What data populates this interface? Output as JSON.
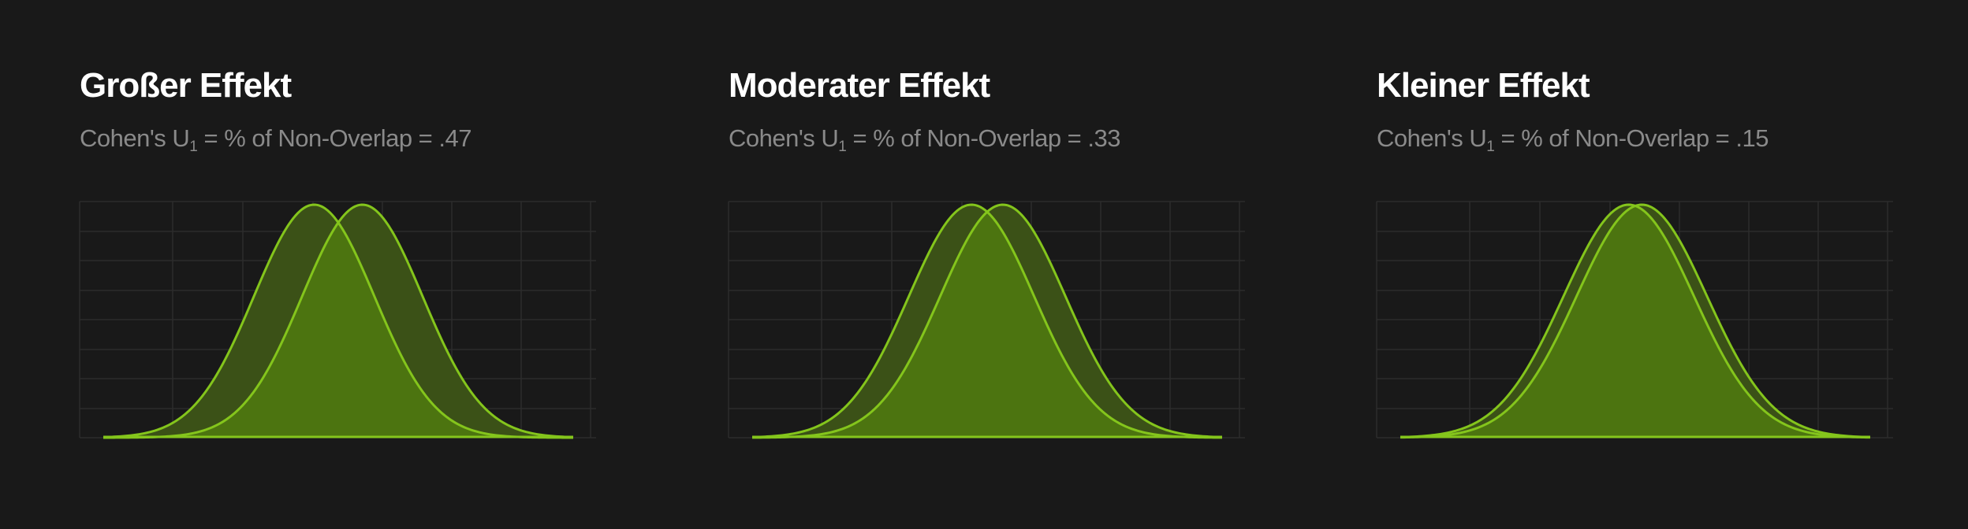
{
  "theme": {
    "background": "#191919",
    "grid_color": "#2c2c2c",
    "line_color": "#84c51c",
    "fill_color_overlap": "#4c7410",
    "fill_color_nonoverlap": "#3b5117"
  },
  "panels": [
    {
      "title": "Großer Effekt",
      "subtitle_prefix": "Cohen's U",
      "subtitle_sub": "1",
      "subtitle_suffix": " = % of Non-Overlap = .47"
    },
    {
      "title": "Moderater Effekt",
      "subtitle_prefix": "Cohen's U",
      "subtitle_sub": "1",
      "subtitle_suffix": " = % of Non-Overlap = .33"
    },
    {
      "title": "Kleiner Effekt",
      "subtitle_prefix": "Cohen's U",
      "subtitle_sub": "1",
      "subtitle_suffix": " = % of Non-Overlap = .15"
    }
  ],
  "chart_data": [
    {
      "type": "area",
      "title": "Großer Effekt",
      "grid": true,
      "xlim": [
        -3.5,
        4.3
      ],
      "ylim": [
        0,
        0.4
      ],
      "series": [
        {
          "distribution": "normal",
          "mean": 0,
          "sd": 1
        },
        {
          "distribution": "normal",
          "mean": 0.8,
          "sd": 1
        }
      ]
    },
    {
      "type": "area",
      "title": "Moderater Effekt",
      "grid": true,
      "xlim": [
        -3.5,
        4
      ],
      "ylim": [
        0,
        0.4
      ],
      "series": [
        {
          "distribution": "normal",
          "mean": 0,
          "sd": 1
        },
        {
          "distribution": "normal",
          "mean": 0.5,
          "sd": 1
        }
      ]
    },
    {
      "type": "area",
      "title": "Kleiner Effekt",
      "grid": true,
      "xlim": [
        -3.5,
        3.7
      ],
      "ylim": [
        0,
        0.4
      ],
      "series": [
        {
          "distribution": "normal",
          "mean": 0,
          "sd": 1
        },
        {
          "distribution": "normal",
          "mean": 0.2,
          "sd": 1
        }
      ]
    }
  ]
}
